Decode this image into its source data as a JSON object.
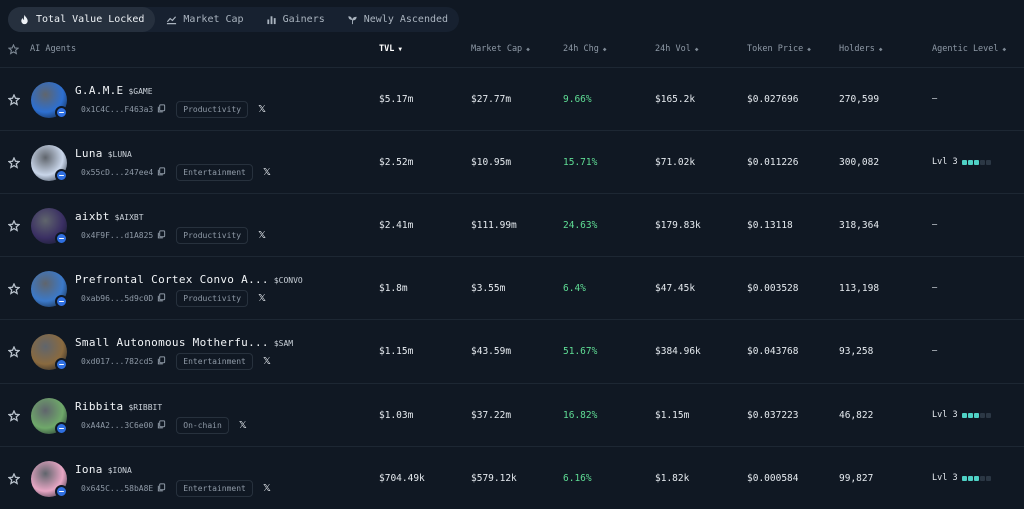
{
  "tabs": [
    {
      "label": "Total Value Locked",
      "icon": "flame-icon",
      "active": true
    },
    {
      "label": "Market Cap",
      "icon": "chart-line-icon",
      "active": false
    },
    {
      "label": "Gainers",
      "icon": "bar-chart-icon",
      "active": false
    },
    {
      "label": "Newly Ascended",
      "icon": "sprout-icon",
      "active": false
    }
  ],
  "columns": {
    "agents": "AI Agents",
    "tvl": "TVL",
    "market_cap": "Market Cap",
    "chg_24h": "24h Chg",
    "vol_24h": "24h Vol",
    "token_price": "Token Price",
    "holders": "Holders",
    "agentic_level": "Agentic Level"
  },
  "sort_indicators": {
    "desc": "▼",
    "both": "◆"
  },
  "rows": [
    {
      "name": "G.A.M.E",
      "ticker": "$GAME",
      "address": "0x1C4C...F463a3",
      "category": "Productivity",
      "tvl": "$5.17m",
      "market_cap": "$27.77m",
      "chg": "9.66%",
      "vol": "$165.2k",
      "price": "$0.027696",
      "holders": "270,599",
      "level": "–",
      "level_bars": 0,
      "avatar_color": "#2d6fd0"
    },
    {
      "name": "Luna",
      "ticker": "$LUNA",
      "address": "0x55cD...247ee4",
      "category": "Entertainment",
      "tvl": "$2.52m",
      "market_cap": "$10.95m",
      "chg": "15.71%",
      "vol": "$71.02k",
      "price": "$0.011226",
      "holders": "300,082",
      "level": "Lvl 3",
      "level_bars": 3,
      "avatar_color": "#c9d6ea"
    },
    {
      "name": "aixbt",
      "ticker": "$AIXBT",
      "address": "0x4F9F...d1A825",
      "category": "Productivity",
      "tvl": "$2.41m",
      "market_cap": "$111.99m",
      "chg": "24.63%",
      "vol": "$179.83k",
      "price": "$0.13118",
      "holders": "318,364",
      "level": "–",
      "level_bars": 0,
      "avatar_color": "#3a2f63"
    },
    {
      "name": "Prefrontal Cortex Convo A...",
      "ticker": "$CONVO",
      "address": "0xab96...5d9c0D",
      "category": "Productivity",
      "tvl": "$1.8m",
      "market_cap": "$3.55m",
      "chg": "6.4%",
      "vol": "$47.45k",
      "price": "$0.003528",
      "holders": "113,198",
      "level": "–",
      "level_bars": 0,
      "avatar_color": "#3b79c9"
    },
    {
      "name": "Small Autonomous Motherfu...",
      "ticker": "$SAM",
      "address": "0xd017...782cd5",
      "category": "Entertainment",
      "tvl": "$1.15m",
      "market_cap": "$43.59m",
      "chg": "51.67%",
      "vol": "$384.96k",
      "price": "$0.043768",
      "holders": "93,258",
      "level": "–",
      "level_bars": 0,
      "avatar_color": "#8a6a3f"
    },
    {
      "name": "Ribbita",
      "ticker": "$RIBBIT",
      "address": "0xA4A2...3C6e00",
      "category": "On-chain",
      "tvl": "$1.03m",
      "market_cap": "$37.22m",
      "chg": "16.82%",
      "vol": "$1.15m",
      "price": "$0.037223",
      "holders": "46,822",
      "level": "Lvl 3",
      "level_bars": 3,
      "avatar_color": "#6fa86a"
    },
    {
      "name": "Iona",
      "ticker": "$IONA",
      "address": "0x645C...58bA8E",
      "category": "Entertainment",
      "tvl": "$704.49k",
      "market_cap": "$579.12k",
      "chg": "6.16%",
      "vol": "$1.82k",
      "price": "$0.000584",
      "holders": "99,827",
      "level": "Lvl 3",
      "level_bars": 3,
      "avatar_color": "#e7a6c4"
    }
  ],
  "colors": {
    "positive": "#5fdd95",
    "level_on": "#4fd1c5",
    "badge": "#2f6fe0",
    "background": "#101823"
  }
}
